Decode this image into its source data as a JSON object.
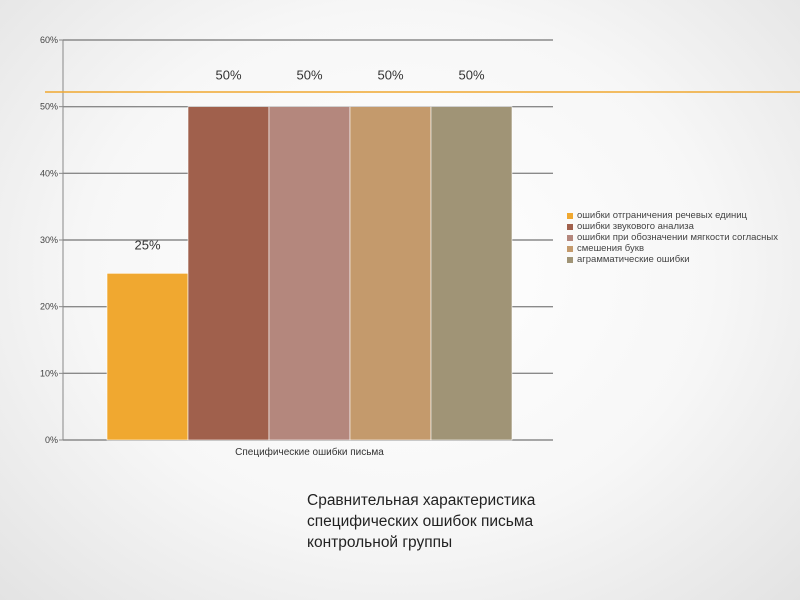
{
  "chart_data": {
    "type": "bar",
    "categories": [
      "Специфические ошибки письма"
    ],
    "xlabel": "Специфические ошибки письма",
    "ylim": [
      0,
      60
    ],
    "y_ticks": [
      "0%",
      "10%",
      "20%",
      "30%",
      "40%",
      "50%",
      "60%"
    ],
    "grid": true,
    "legend_position": "right",
    "series": [
      {
        "name": "ошибки отграничения речевых единиц",
        "values": [
          25
        ],
        "label": "25%",
        "color": "#f0a830"
      },
      {
        "name": "ошибки звукового анализа",
        "values": [
          50
        ],
        "label": "50%",
        "color": "#a0604c"
      },
      {
        "name": "ошибки при обозначении мягкости согласных",
        "values": [
          50
        ],
        "label": "50%",
        "color": "#b4877d"
      },
      {
        "name": "смешения букв",
        "values": [
          50
        ],
        "label": "50%",
        "color": "#c49a6c"
      },
      {
        "name": "аграмматические ошибки",
        "values": [
          50
        ],
        "label": "50%",
        "color": "#a09476"
      }
    ]
  },
  "accent_color": "#f0a830",
  "caption": {
    "line1": "Сравнительная характеристика",
    "line2": "специфических ошибок письма",
    "line3": "контрольной группы"
  }
}
